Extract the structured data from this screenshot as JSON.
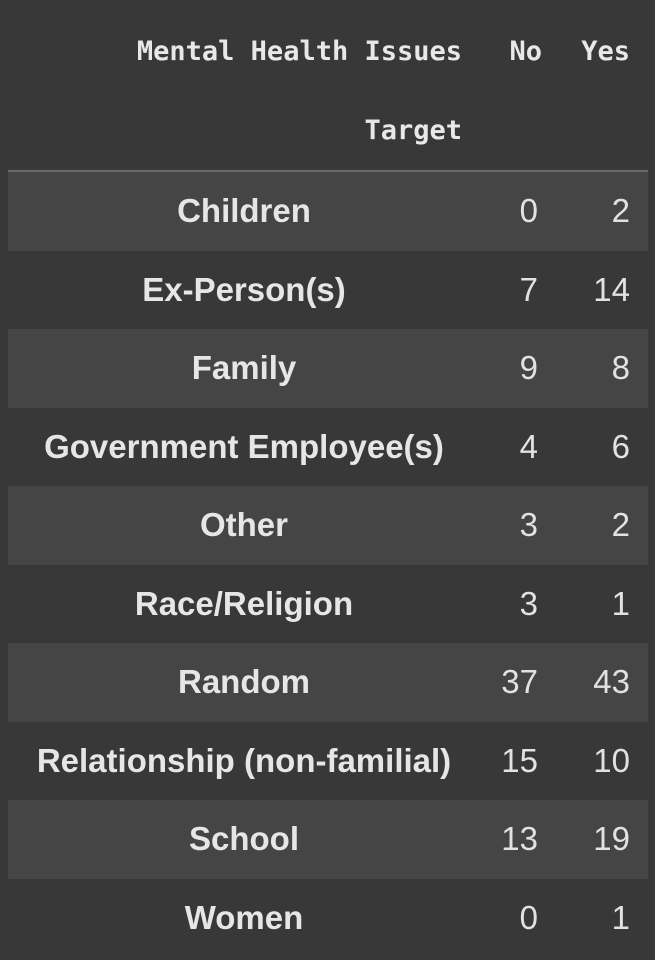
{
  "table": {
    "header": {
      "column_index_name": "Mental Health Issues",
      "col_no": "No",
      "col_yes": "Yes",
      "row_index_name": "Target"
    },
    "rows": [
      {
        "label": "Children",
        "no": "0",
        "yes": "2"
      },
      {
        "label": "Ex-Person(s)",
        "no": "7",
        "yes": "14"
      },
      {
        "label": "Family",
        "no": "9",
        "yes": "8"
      },
      {
        "label": "Government Employee(s)",
        "no": "4",
        "yes": "6"
      },
      {
        "label": "Other",
        "no": "3",
        "yes": "2"
      },
      {
        "label": "Race/Religion",
        "no": "3",
        "yes": "1"
      },
      {
        "label": "Random",
        "no": "37",
        "yes": "43"
      },
      {
        "label": "Relationship (non-familial)",
        "no": "15",
        "yes": "10"
      },
      {
        "label": "School",
        "no": "13",
        "yes": "19"
      },
      {
        "label": "Women",
        "no": "0",
        "yes": "1"
      }
    ]
  },
  "colors": {
    "background": "#383838",
    "stripe": "#454545",
    "text": "#e8e8e8",
    "header_rule": "#6a6a6a"
  }
}
